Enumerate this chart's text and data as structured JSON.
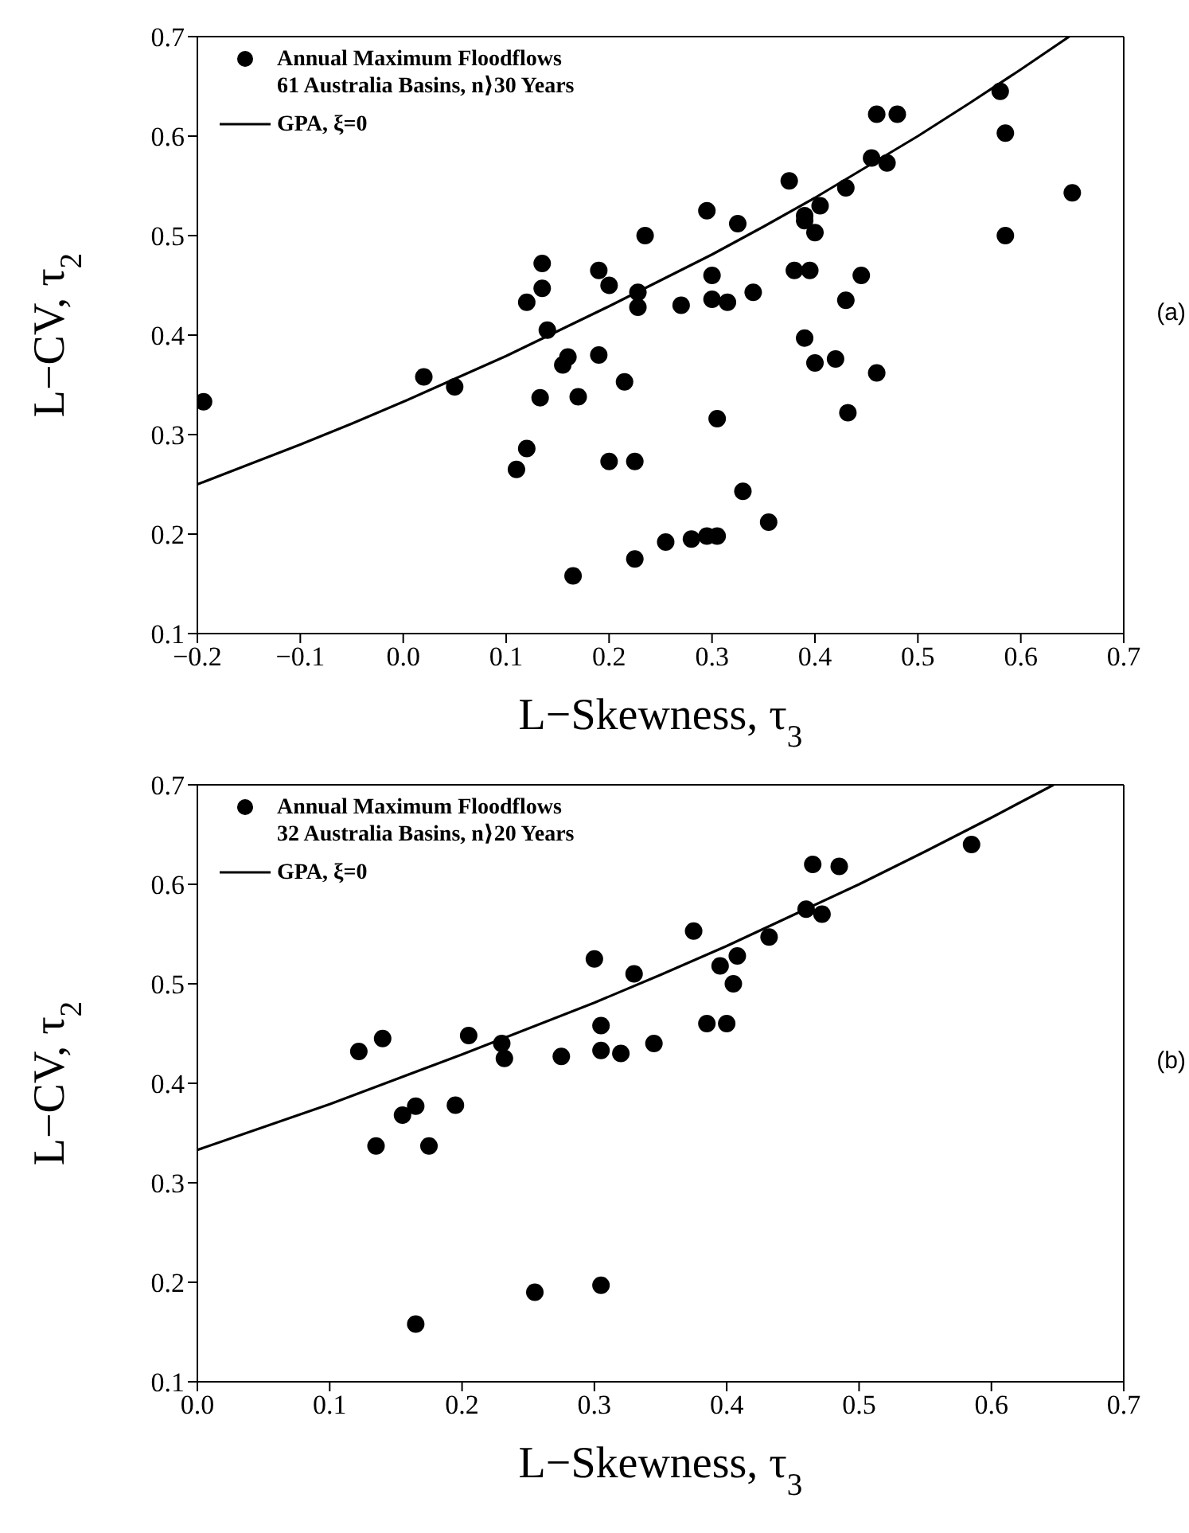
{
  "chart_data": [
    {
      "type": "scatter",
      "xlabel": "L−Skewness,  τ$_{3}$",
      "ylabel": "L−CV,  τ$_{2}$",
      "xlim": [
        -0.2,
        0.7
      ],
      "xticks": [
        {
          "value": -0.2,
          "label": "−0.2"
        },
        {
          "value": -0.1,
          "label": "−0.1"
        },
        {
          "value": 0,
          "label": "0.0"
        },
        0.1,
        0.2,
        0.3,
        0.4,
        0.5,
        0.6,
        0.7
      ],
      "ylim": [
        0.1,
        0.7
      ],
      "yticks": [
        0.1,
        0.2,
        0.3,
        0.4,
        0.5,
        0.6,
        0.7
      ],
      "legend": "top left",
      "annotations": [
        "(a)"
      ],
      "series": [
        {
          "name": "Annual Maximum Floodflows\n61 Australia Basins, n⟩30 Years",
          "marker": "circle",
          "color": "#000000",
          "x": [
            -0.194,
            0.02,
            0.05,
            0.11,
            0.12,
            0.12,
            0.133,
            0.135,
            0.135,
            0.14,
            0.155,
            0.16,
            0.165,
            0.17,
            0.19,
            0.19,
            0.2,
            0.2,
            0.215,
            0.225,
            0.225,
            0.228,
            0.228,
            0.235,
            0.255,
            0.27,
            0.28,
            0.295,
            0.295,
            0.3,
            0.3,
            0.305,
            0.305,
            0.315,
            0.325,
            0.33,
            0.34,
            0.355,
            0.375,
            0.38,
            0.39,
            0.39,
            0.39,
            0.395,
            0.4,
            0.4,
            0.405,
            0.42,
            0.43,
            0.43,
            0.432,
            0.445,
            0.455,
            0.46,
            0.46,
            0.47,
            0.48,
            0.58,
            0.585,
            0.585,
            0.65
          ],
          "values": [
            0.333,
            0.358,
            0.348,
            0.265,
            0.286,
            0.433,
            0.337,
            0.472,
            0.447,
            0.405,
            0.37,
            0.378,
            0.158,
            0.338,
            0.465,
            0.38,
            0.45,
            0.273,
            0.353,
            0.273,
            0.175,
            0.443,
            0.428,
            0.5,
            0.192,
            0.43,
            0.195,
            0.198,
            0.525,
            0.46,
            0.436,
            0.198,
            0.316,
            0.433,
            0.512,
            0.243,
            0.443,
            0.212,
            0.555,
            0.465,
            0.397,
            0.52,
            0.515,
            0.465,
            0.372,
            0.503,
            0.53,
            0.376,
            0.548,
            0.435,
            0.322,
            0.46,
            0.578,
            0.362,
            0.622,
            0.573,
            0.622,
            0.645,
            0.603,
            0.5,
            0.543
          ]
        },
        {
          "name": "GPA, ξ=0",
          "type": "line",
          "marker": "none",
          "color": "#000000",
          "x": [
            -0.2,
            -0.15,
            -0.1,
            -0.05,
            0,
            0.05,
            0.1,
            0.15,
            0.2,
            0.25,
            0.3,
            0.35,
            0.4,
            0.45,
            0.5,
            0.55,
            0.6,
            0.647
          ],
          "values": [
            0.25,
            0.27,
            0.29,
            0.311,
            0.333,
            0.356,
            0.379,
            0.404,
            0.429,
            0.455,
            0.481,
            0.509,
            0.538,
            0.569,
            0.6,
            0.633,
            0.667,
            0.7
          ]
        }
      ]
    },
    {
      "type": "scatter",
      "xlabel": "L−Skewness,  τ$_{3}$",
      "ylabel": "L−CV,  τ$_{2}$",
      "xlim": [
        0,
        0.7
      ],
      "xticks": [
        {
          "value": 0,
          "label": "0.0"
        },
        0.1,
        0.2,
        0.3,
        0.4,
        0.5,
        0.6,
        0.7
      ],
      "ylim": [
        0.1,
        0.7
      ],
      "yticks": [
        0.1,
        0.2,
        0.3,
        0.4,
        0.5,
        0.6,
        0.7
      ],
      "legend": "top left",
      "annotations": [
        "(b)"
      ],
      "series": [
        {
          "name": "Annual Maximum Floodflows\n32 Australia Basins, n⟩20 Years",
          "marker": "circle",
          "color": "#000000",
          "x": [
            0.122,
            0.135,
            0.14,
            0.155,
            0.165,
            0.165,
            0.175,
            0.195,
            0.205,
            0.23,
            0.232,
            0.255,
            0.275,
            0.3,
            0.305,
            0.305,
            0.305,
            0.32,
            0.33,
            0.345,
            0.375,
            0.385,
            0.395,
            0.4,
            0.405,
            0.408,
            0.432,
            0.46,
            0.465,
            0.472,
            0.485,
            0.585
          ],
          "values": [
            0.432,
            0.337,
            0.445,
            0.368,
            0.377,
            0.158,
            0.337,
            0.378,
            0.448,
            0.44,
            0.425,
            0.19,
            0.427,
            0.525,
            0.458,
            0.433,
            0.197,
            0.43,
            0.51,
            0.44,
            0.553,
            0.46,
            0.518,
            0.46,
            0.5,
            0.528,
            0.547,
            0.575,
            0.62,
            0.57,
            0.618,
            0.64
          ]
        },
        {
          "name": "GPA, ξ=0",
          "type": "line",
          "marker": "none",
          "color": "#000000",
          "x": [
            0,
            0.05,
            0.1,
            0.15,
            0.2,
            0.25,
            0.3,
            0.35,
            0.4,
            0.45,
            0.5,
            0.55,
            0.6,
            0.647
          ],
          "values": [
            0.333,
            0.356,
            0.379,
            0.404,
            0.429,
            0.455,
            0.481,
            0.509,
            0.538,
            0.569,
            0.6,
            0.633,
            0.667,
            0.7
          ]
        }
      ]
    }
  ]
}
